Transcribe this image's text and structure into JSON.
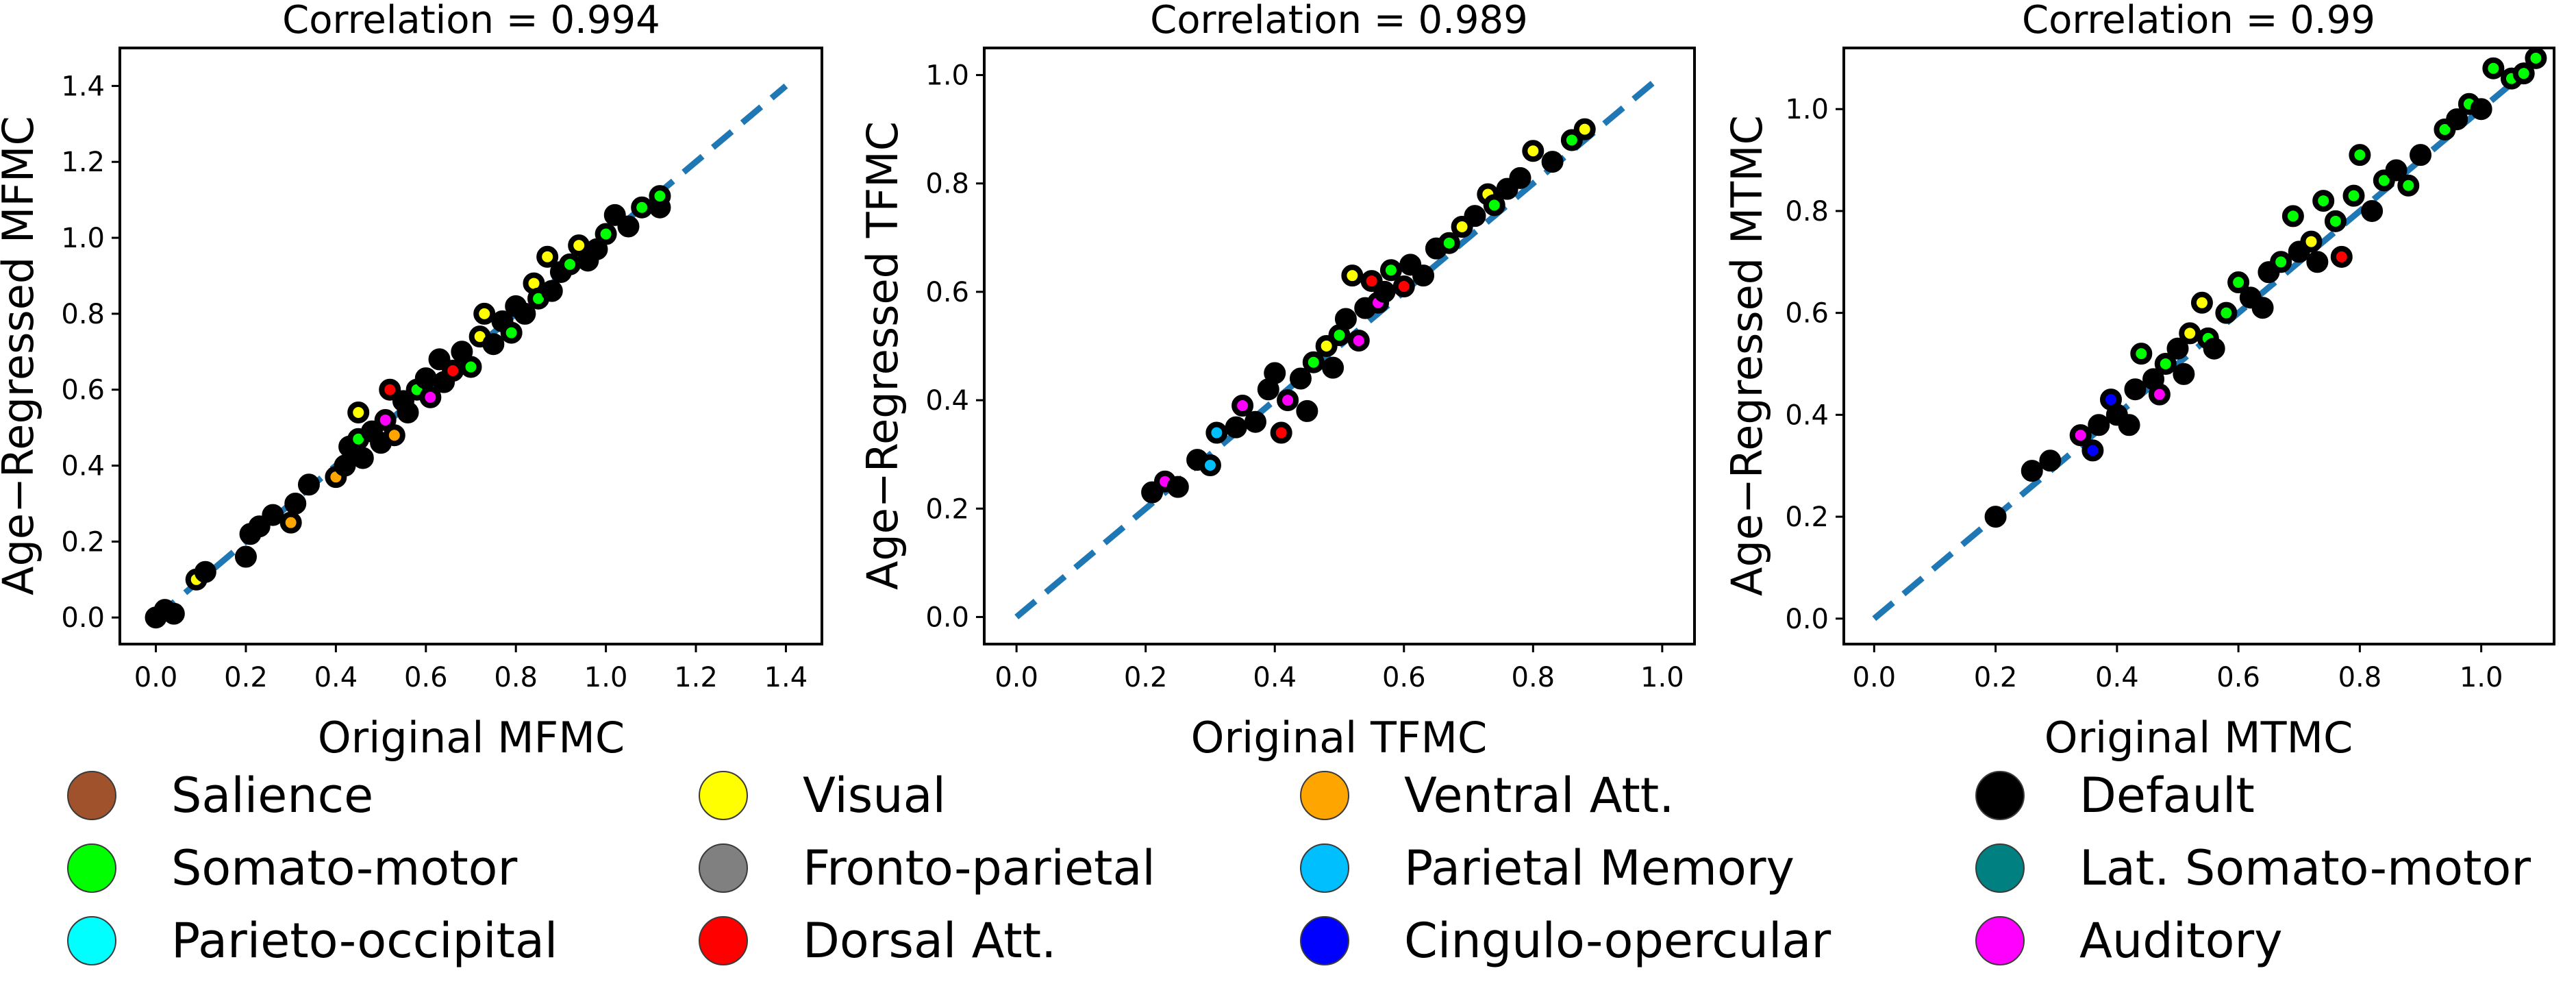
{
  "chart_data": [
    {
      "type": "scatter",
      "title": "Correlation = 0.994",
      "xlabel": "Original MFMC",
      "ylabel": "Age−Regressed MFMC",
      "xlim": [
        -0.08,
        1.48
      ],
      "ylim": [
        -0.07,
        1.5
      ],
      "xticks": [
        "0.0",
        "0.2",
        "0.4",
        "0.6",
        "0.8",
        "1.0",
        "1.2",
        "1.4"
      ],
      "yticks": [
        "0.0",
        "0.2",
        "0.4",
        "0.6",
        "0.8",
        "1.0",
        "1.2",
        "1.4"
      ],
      "identity_line": [
        0.0,
        1.4
      ],
      "points": [
        {
          "x": 0.0,
          "y": 0.0,
          "n": "Default"
        },
        {
          "x": 0.02,
          "y": 0.02,
          "n": "Default"
        },
        {
          "x": 0.04,
          "y": 0.01,
          "n": "Default"
        },
        {
          "x": 0.09,
          "y": 0.1,
          "n": "Visual"
        },
        {
          "x": 0.11,
          "y": 0.12,
          "n": "Default"
        },
        {
          "x": 0.21,
          "y": 0.22,
          "n": "Default"
        },
        {
          "x": 0.23,
          "y": 0.24,
          "n": "Default"
        },
        {
          "x": 0.2,
          "y": 0.16,
          "n": "Default"
        },
        {
          "x": 0.26,
          "y": 0.27,
          "n": "Default"
        },
        {
          "x": 0.3,
          "y": 0.25,
          "n": "Ventral Att."
        },
        {
          "x": 0.31,
          "y": 0.3,
          "n": "Default"
        },
        {
          "x": 0.34,
          "y": 0.35,
          "n": "Default"
        },
        {
          "x": 0.4,
          "y": 0.37,
          "n": "Ventral Att."
        },
        {
          "x": 0.42,
          "y": 0.4,
          "n": "Default"
        },
        {
          "x": 0.43,
          "y": 0.45,
          "n": "Default"
        },
        {
          "x": 0.45,
          "y": 0.47,
          "n": "Somato-motor"
        },
        {
          "x": 0.45,
          "y": 0.54,
          "n": "Visual"
        },
        {
          "x": 0.46,
          "y": 0.42,
          "n": "Default"
        },
        {
          "x": 0.48,
          "y": 0.49,
          "n": "Default"
        },
        {
          "x": 0.5,
          "y": 0.46,
          "n": "Default"
        },
        {
          "x": 0.51,
          "y": 0.52,
          "n": "Auditory"
        },
        {
          "x": 0.52,
          "y": 0.6,
          "n": "Dorsal Att."
        },
        {
          "x": 0.53,
          "y": 0.48,
          "n": "Ventral Att."
        },
        {
          "x": 0.55,
          "y": 0.57,
          "n": "Default"
        },
        {
          "x": 0.56,
          "y": 0.54,
          "n": "Default"
        },
        {
          "x": 0.58,
          "y": 0.6,
          "n": "Somato-motor"
        },
        {
          "x": 0.6,
          "y": 0.63,
          "n": "Default"
        },
        {
          "x": 0.61,
          "y": 0.58,
          "n": "Auditory"
        },
        {
          "x": 0.63,
          "y": 0.68,
          "n": "Default"
        },
        {
          "x": 0.64,
          "y": 0.62,
          "n": "Default"
        },
        {
          "x": 0.66,
          "y": 0.65,
          "n": "Dorsal Att."
        },
        {
          "x": 0.68,
          "y": 0.7,
          "n": "Default"
        },
        {
          "x": 0.7,
          "y": 0.66,
          "n": "Somato-motor"
        },
        {
          "x": 0.72,
          "y": 0.74,
          "n": "Visual"
        },
        {
          "x": 0.73,
          "y": 0.8,
          "n": "Visual"
        },
        {
          "x": 0.75,
          "y": 0.72,
          "n": "Default"
        },
        {
          "x": 0.77,
          "y": 0.78,
          "n": "Default"
        },
        {
          "x": 0.79,
          "y": 0.75,
          "n": "Somato-motor"
        },
        {
          "x": 0.8,
          "y": 0.82,
          "n": "Default"
        },
        {
          "x": 0.82,
          "y": 0.8,
          "n": "Default"
        },
        {
          "x": 0.84,
          "y": 0.88,
          "n": "Visual"
        },
        {
          "x": 0.85,
          "y": 0.84,
          "n": "Somato-motor"
        },
        {
          "x": 0.87,
          "y": 0.95,
          "n": "Visual"
        },
        {
          "x": 0.88,
          "y": 0.86,
          "n": "Default"
        },
        {
          "x": 0.9,
          "y": 0.91,
          "n": "Default"
        },
        {
          "x": 0.92,
          "y": 0.93,
          "n": "Somato-motor"
        },
        {
          "x": 0.94,
          "y": 0.98,
          "n": "Visual"
        },
        {
          "x": 0.96,
          "y": 0.94,
          "n": "Default"
        },
        {
          "x": 0.98,
          "y": 0.97,
          "n": "Default"
        },
        {
          "x": 1.0,
          "y": 1.01,
          "n": "Somato-motor"
        },
        {
          "x": 1.02,
          "y": 1.06,
          "n": "Default"
        },
        {
          "x": 1.05,
          "y": 1.03,
          "n": "Default"
        },
        {
          "x": 1.08,
          "y": 1.08,
          "n": "Somato-motor"
        },
        {
          "x": 1.12,
          "y": 1.08,
          "n": "Default"
        },
        {
          "x": 1.12,
          "y": 1.11,
          "n": "Somato-motor"
        }
      ]
    },
    {
      "type": "scatter",
      "title": "Correlation = 0.989",
      "xlabel": "Original TFMC",
      "ylabel": "Age−Regressed TFMC",
      "xlim": [
        -0.05,
        1.05
      ],
      "ylim": [
        -0.05,
        1.05
      ],
      "xticks": [
        "0.0",
        "0.2",
        "0.4",
        "0.6",
        "0.8",
        "1.0"
      ],
      "yticks": [
        "0.0",
        "0.2",
        "0.4",
        "0.6",
        "0.8",
        "1.0"
      ],
      "identity_line": [
        0.0,
        1.0
      ],
      "points": [
        {
          "x": 0.21,
          "y": 0.23,
          "n": "Default"
        },
        {
          "x": 0.23,
          "y": 0.25,
          "n": "Auditory"
        },
        {
          "x": 0.25,
          "y": 0.24,
          "n": "Default"
        },
        {
          "x": 0.28,
          "y": 0.29,
          "n": "Default"
        },
        {
          "x": 0.3,
          "y": 0.28,
          "n": "Parietal Memory"
        },
        {
          "x": 0.31,
          "y": 0.34,
          "n": "Parietal Memory"
        },
        {
          "x": 0.34,
          "y": 0.35,
          "n": "Default"
        },
        {
          "x": 0.35,
          "y": 0.39,
          "n": "Auditory"
        },
        {
          "x": 0.37,
          "y": 0.36,
          "n": "Default"
        },
        {
          "x": 0.39,
          "y": 0.42,
          "n": "Default"
        },
        {
          "x": 0.4,
          "y": 0.45,
          "n": "Default"
        },
        {
          "x": 0.41,
          "y": 0.34,
          "n": "Dorsal Att."
        },
        {
          "x": 0.42,
          "y": 0.4,
          "n": "Auditory"
        },
        {
          "x": 0.44,
          "y": 0.44,
          "n": "Default"
        },
        {
          "x": 0.45,
          "y": 0.38,
          "n": "Default"
        },
        {
          "x": 0.46,
          "y": 0.47,
          "n": "Somato-motor"
        },
        {
          "x": 0.48,
          "y": 0.5,
          "n": "Visual"
        },
        {
          "x": 0.49,
          "y": 0.46,
          "n": "Default"
        },
        {
          "x": 0.5,
          "y": 0.52,
          "n": "Somato-motor"
        },
        {
          "x": 0.51,
          "y": 0.55,
          "n": "Default"
        },
        {
          "x": 0.52,
          "y": 0.63,
          "n": "Visual"
        },
        {
          "x": 0.53,
          "y": 0.51,
          "n": "Auditory"
        },
        {
          "x": 0.54,
          "y": 0.57,
          "n": "Default"
        },
        {
          "x": 0.55,
          "y": 0.62,
          "n": "Dorsal Att."
        },
        {
          "x": 0.56,
          "y": 0.58,
          "n": "Auditory"
        },
        {
          "x": 0.57,
          "y": 0.6,
          "n": "Default"
        },
        {
          "x": 0.58,
          "y": 0.64,
          "n": "Somato-motor"
        },
        {
          "x": 0.6,
          "y": 0.61,
          "n": "Dorsal Att."
        },
        {
          "x": 0.61,
          "y": 0.65,
          "n": "Default"
        },
        {
          "x": 0.63,
          "y": 0.63,
          "n": "Default"
        },
        {
          "x": 0.65,
          "y": 0.68,
          "n": "Default"
        },
        {
          "x": 0.67,
          "y": 0.69,
          "n": "Somato-motor"
        },
        {
          "x": 0.69,
          "y": 0.72,
          "n": "Visual"
        },
        {
          "x": 0.71,
          "y": 0.74,
          "n": "Default"
        },
        {
          "x": 0.73,
          "y": 0.78,
          "n": "Visual"
        },
        {
          "x": 0.74,
          "y": 0.76,
          "n": "Somato-motor"
        },
        {
          "x": 0.76,
          "y": 0.79,
          "n": "Default"
        },
        {
          "x": 0.78,
          "y": 0.81,
          "n": "Default"
        },
        {
          "x": 0.8,
          "y": 0.86,
          "n": "Visual"
        },
        {
          "x": 0.83,
          "y": 0.84,
          "n": "Default"
        },
        {
          "x": 0.86,
          "y": 0.88,
          "n": "Somato-motor"
        },
        {
          "x": 0.88,
          "y": 0.9,
          "n": "Visual"
        }
      ]
    },
    {
      "type": "scatter",
      "title": "Correlation = 0.99",
      "xlabel": "Original MTMC",
      "ylabel": "Age−Regressed MTMC",
      "xlim": [
        -0.05,
        1.12
      ],
      "ylim": [
        -0.05,
        1.12
      ],
      "xticks": [
        "0.0",
        "0.2",
        "0.4",
        "0.6",
        "0.8",
        "1.0"
      ],
      "yticks": [
        "0.0",
        "0.2",
        "0.4",
        "0.6",
        "0.8",
        "1.0"
      ],
      "identity_line": [
        0.0,
        1.1
      ],
      "points": [
        {
          "x": 0.2,
          "y": 0.2,
          "n": "Default"
        },
        {
          "x": 0.26,
          "y": 0.29,
          "n": "Default"
        },
        {
          "x": 0.29,
          "y": 0.31,
          "n": "Default"
        },
        {
          "x": 0.34,
          "y": 0.36,
          "n": "Auditory"
        },
        {
          "x": 0.36,
          "y": 0.33,
          "n": "Cingulo-opercular"
        },
        {
          "x": 0.37,
          "y": 0.38,
          "n": "Default"
        },
        {
          "x": 0.39,
          "y": 0.43,
          "n": "Cingulo-opercular"
        },
        {
          "x": 0.4,
          "y": 0.4,
          "n": "Default"
        },
        {
          "x": 0.42,
          "y": 0.38,
          "n": "Default"
        },
        {
          "x": 0.43,
          "y": 0.45,
          "n": "Default"
        },
        {
          "x": 0.44,
          "y": 0.52,
          "n": "Somato-motor"
        },
        {
          "x": 0.46,
          "y": 0.47,
          "n": "Default"
        },
        {
          "x": 0.47,
          "y": 0.44,
          "n": "Auditory"
        },
        {
          "x": 0.48,
          "y": 0.5,
          "n": "Somato-motor"
        },
        {
          "x": 0.5,
          "y": 0.53,
          "n": "Default"
        },
        {
          "x": 0.51,
          "y": 0.48,
          "n": "Default"
        },
        {
          "x": 0.52,
          "y": 0.56,
          "n": "Visual"
        },
        {
          "x": 0.54,
          "y": 0.62,
          "n": "Visual"
        },
        {
          "x": 0.55,
          "y": 0.55,
          "n": "Somato-motor"
        },
        {
          "x": 0.56,
          "y": 0.53,
          "n": "Default"
        },
        {
          "x": 0.58,
          "y": 0.6,
          "n": "Somato-motor"
        },
        {
          "x": 0.6,
          "y": 0.66,
          "n": "Somato-motor"
        },
        {
          "x": 0.62,
          "y": 0.63,
          "n": "Default"
        },
        {
          "x": 0.64,
          "y": 0.61,
          "n": "Default"
        },
        {
          "x": 0.65,
          "y": 0.68,
          "n": "Default"
        },
        {
          "x": 0.67,
          "y": 0.7,
          "n": "Somato-motor"
        },
        {
          "x": 0.69,
          "y": 0.79,
          "n": "Somato-motor"
        },
        {
          "x": 0.7,
          "y": 0.72,
          "n": "Default"
        },
        {
          "x": 0.72,
          "y": 0.74,
          "n": "Visual"
        },
        {
          "x": 0.73,
          "y": 0.7,
          "n": "Default"
        },
        {
          "x": 0.74,
          "y": 0.82,
          "n": "Somato-motor"
        },
        {
          "x": 0.76,
          "y": 0.78,
          "n": "Somato-motor"
        },
        {
          "x": 0.77,
          "y": 0.71,
          "n": "Dorsal Att."
        },
        {
          "x": 0.79,
          "y": 0.83,
          "n": "Somato-motor"
        },
        {
          "x": 0.8,
          "y": 0.91,
          "n": "Somato-motor"
        },
        {
          "x": 0.82,
          "y": 0.8,
          "n": "Default"
        },
        {
          "x": 0.84,
          "y": 0.86,
          "n": "Somato-motor"
        },
        {
          "x": 0.86,
          "y": 0.88,
          "n": "Default"
        },
        {
          "x": 0.88,
          "y": 0.85,
          "n": "Somato-motor"
        },
        {
          "x": 0.9,
          "y": 0.91,
          "n": "Default"
        },
        {
          "x": 0.94,
          "y": 0.96,
          "n": "Somato-motor"
        },
        {
          "x": 0.96,
          "y": 0.98,
          "n": "Default"
        },
        {
          "x": 0.98,
          "y": 1.01,
          "n": "Somato-motor"
        },
        {
          "x": 1.0,
          "y": 1.0,
          "n": "Default"
        },
        {
          "x": 1.02,
          "y": 1.08,
          "n": "Somato-motor"
        },
        {
          "x": 1.05,
          "y": 1.06,
          "n": "Somato-motor"
        },
        {
          "x": 1.07,
          "y": 1.07,
          "n": "Somato-motor"
        },
        {
          "x": 1.09,
          "y": 1.1,
          "n": "Somato-motor"
        }
      ]
    }
  ],
  "colors": {
    "identity_line": "#1f77b4",
    "point_edge": "#000000"
  },
  "legend": {
    "placement": "bottom",
    "items": [
      {
        "label": "Salience",
        "color": "#a0522d"
      },
      {
        "label": "Visual",
        "color": "#ffff00"
      },
      {
        "label": "Ventral Att.",
        "color": "#ffa500"
      },
      {
        "label": "Default",
        "color": "#000000"
      },
      {
        "label": "Somato-motor",
        "color": "#00ff00"
      },
      {
        "label": "Fronto-parietal",
        "color": "#808080"
      },
      {
        "label": "Parietal Memory",
        "color": "#00bfff"
      },
      {
        "label": "Lat. Somato-motor",
        "color": "#008080"
      },
      {
        "label": "Parieto-occipital",
        "color": "#00ffff"
      },
      {
        "label": "Dorsal Att.",
        "color": "#ff0000"
      },
      {
        "label": "Cingulo-opercular",
        "color": "#0000ff"
      },
      {
        "label": "Auditory",
        "color": "#ff00ff"
      }
    ]
  }
}
